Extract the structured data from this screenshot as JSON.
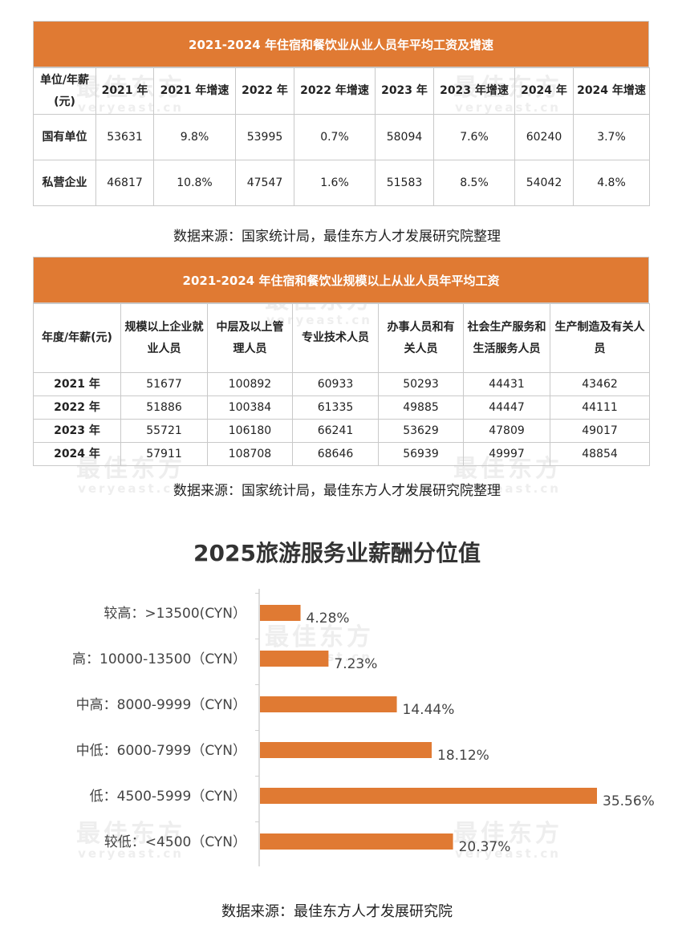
{
  "watermark": {
    "cn": "最佳东方",
    "en": "veryeast.cn"
  },
  "table1": {
    "title": "2021-2024 年住宿和餐饮业从业人员年平均工资及增速",
    "header": [
      "单位/年薪(元)",
      "2021 年",
      "2021 年增速",
      "2022 年",
      "2022 年增速",
      "2023 年",
      "2023 年增速",
      "2024 年",
      "2024 年增速"
    ],
    "rows": [
      [
        "国有单位",
        "53631",
        "9.8%",
        "53995",
        "0.7%",
        "58094",
        "7.6%",
        "60240",
        "3.7%"
      ],
      [
        "私营企业",
        "46817",
        "10.8%",
        "47547",
        "1.6%",
        "51583",
        "8.5%",
        "54042",
        "4.8%"
      ]
    ],
    "source": "数据来源：国家统计局，最佳东方人才发展研究院整理"
  },
  "table2": {
    "title": "2021-2024 年住宿和餐饮业规模以上从业人员年平均工资",
    "header": [
      "年度/年薪(元)",
      "规模以上企业就业人员",
      "中层及以上管理人员",
      "专业技术人员",
      "办事人员和有关人员",
      "社会生产服务和生活服务人员",
      "生产制造及有关人员"
    ],
    "rows": [
      [
        "2021 年",
        "51677",
        "100892",
        "60933",
        "50293",
        "44431",
        "43462"
      ],
      [
        "2022 年",
        "51886",
        "100384",
        "61335",
        "49885",
        "44447",
        "44111"
      ],
      [
        "2023 年",
        "55721",
        "106180",
        "66241",
        "53629",
        "47809",
        "49017"
      ],
      [
        "2024 年",
        "57911",
        "108708",
        "68646",
        "56939",
        "49997",
        "48854"
      ]
    ],
    "source": "数据来源：国家统计局，最佳东方人才发展研究院整理"
  },
  "chart_data": {
    "type": "bar",
    "orientation": "horizontal",
    "title": "2025旅游服务业薪酬分位值",
    "categories": [
      "较高：>13500(CYN）",
      "高：10000-13500（CYN）",
      "中高：8000-9999（CYN）",
      "中低：6000-7999（CYN）",
      "低：4500-5999（CYN）",
      "较低：<4500（CYN）"
    ],
    "values": [
      4.28,
      7.23,
      14.44,
      18.12,
      35.56,
      20.37
    ],
    "value_labels": [
      "4.28%",
      "7.23%",
      "14.44%",
      "18.12%",
      "35.56%",
      "20.37%"
    ],
    "unit": "%",
    "xlim": [
      0,
      35.56
    ],
    "color": "#e07a33"
  },
  "chart_source": "数据来源：最佳东方人才发展研究院"
}
